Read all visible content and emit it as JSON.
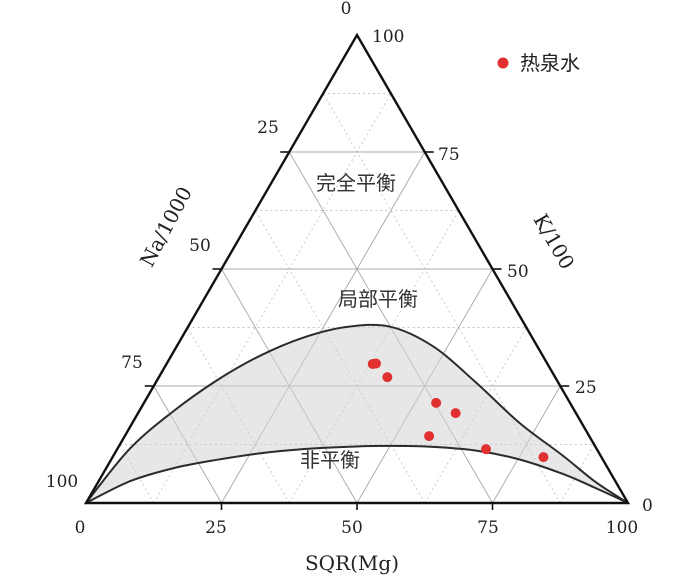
{
  "chart_data": {
    "type": "scatter",
    "subtype": "ternary",
    "axes": {
      "left": {
        "label": "Na/1000",
        "ticks": [
          "0",
          "25",
          "50",
          "75",
          "100"
        ]
      },
      "right": {
        "label": "K/100",
        "ticks": [
          "100",
          "75",
          "50",
          "25",
          "0"
        ]
      },
      "bottom": {
        "label": "SQR(Mg)",
        "ticks": [
          "0",
          "25",
          "50",
          "75",
          "100"
        ]
      }
    },
    "grid": true,
    "legend": {
      "position": "top-right",
      "entries": [
        {
          "name": "热泉水",
          "color": "#e03030"
        }
      ]
    },
    "zones": [
      {
        "name": "完全平衡"
      },
      {
        "name": "局部平衡"
      },
      {
        "name": "非平衡"
      }
    ],
    "boundary_curves": {
      "upper": [
        [
          0,
          0
        ],
        [
          8,
          11.5
        ],
        [
          16,
          19.5
        ],
        [
          24,
          26.1
        ],
        [
          32,
          31.4
        ],
        [
          40,
          35.3
        ],
        [
          48,
          37.6
        ],
        [
          56,
          37.7
        ],
        [
          64,
          33.5
        ],
        [
          72,
          25.7
        ],
        [
          80,
          17.1
        ],
        [
          88,
          10.1
        ],
        [
          94,
          4.5
        ],
        [
          100,
          0
        ]
      ],
      "lower": [
        [
          0,
          0
        ],
        [
          8,
          4.6
        ],
        [
          16,
          7.4
        ],
        [
          24,
          9.2
        ],
        [
          32,
          10.6
        ],
        [
          40,
          11.5
        ],
        [
          48,
          12.0
        ],
        [
          56,
          12.2
        ],
        [
          64,
          12.0
        ],
        [
          72,
          11.2
        ],
        [
          80,
          9.3
        ],
        [
          88,
          6.2
        ],
        [
          94,
          3.2
        ],
        [
          100,
          0
        ]
      ]
    },
    "series": [
      {
        "name": "热泉水",
        "points": [
          {
            "x": 52.9,
            "k": 29.7
          },
          {
            "x": 53.5,
            "k": 29.8
          },
          {
            "x": 55.6,
            "k": 26.9
          },
          {
            "x": 64.6,
            "k": 21.4
          },
          {
            "x": 68.2,
            "k": 19.2
          },
          {
            "x": 63.3,
            "k": 14.3
          },
          {
            "x": 73.8,
            "k": 11.5
          },
          {
            "x": 84.4,
            "k": 9.8
          }
        ]
      }
    ]
  }
}
